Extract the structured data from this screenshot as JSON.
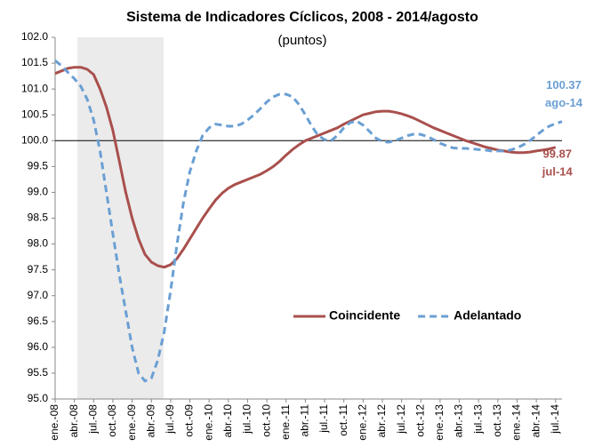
{
  "chart_data": {
    "type": "line",
    "title": "Sistema de Indicadores Cíclicos, 2008 - 2014/agosto",
    "subtitle": "(puntos)",
    "categories": [
      "ene.-08",
      null,
      null,
      "abr.-08",
      null,
      null,
      "jul.-08",
      null,
      null,
      "oct.-08",
      null,
      null,
      "ene.-09",
      null,
      null,
      "abr.-09",
      null,
      null,
      "jul.-09",
      null,
      null,
      "oct.-09",
      null,
      null,
      "ene.-10",
      null,
      null,
      "abr.-10",
      null,
      null,
      "jul.-10",
      null,
      null,
      "oct.-10",
      null,
      null,
      "ene.-11",
      null,
      null,
      "abr.-11",
      null,
      null,
      "jul.-11",
      null,
      null,
      "oct.-11",
      null,
      null,
      "ene.-12",
      null,
      null,
      "abr.-12",
      null,
      null,
      "jul.-12",
      null,
      null,
      "oct.-12",
      null,
      null,
      "ene.-13",
      null,
      null,
      "abr.-13",
      null,
      null,
      "jul.-13",
      null,
      null,
      "oct.-13",
      null,
      null,
      "ene.-14",
      null,
      null,
      "abr.-14",
      null,
      null,
      "jul.-14",
      null
    ],
    "series": [
      {
        "name": "Coincidente",
        "color": "#a9504d",
        "dash": false,
        "end_label": "99.87",
        "end_date": "jul-14",
        "values": [
          101.3,
          101.35,
          101.4,
          101.42,
          101.42,
          101.38,
          101.28,
          101.0,
          100.65,
          100.2,
          99.6,
          99.0,
          98.5,
          98.1,
          97.8,
          97.65,
          97.58,
          97.55,
          97.6,
          97.72,
          97.9,
          98.1,
          98.3,
          98.5,
          98.68,
          98.85,
          98.98,
          99.08,
          99.15,
          99.2,
          99.25,
          99.3,
          99.35,
          99.42,
          99.5,
          99.6,
          99.72,
          99.83,
          99.92,
          100.0,
          100.05,
          100.1,
          100.15,
          100.2,
          100.25,
          100.32,
          100.38,
          100.44,
          100.5,
          100.53,
          100.56,
          100.57,
          100.57,
          100.55,
          100.52,
          100.48,
          100.43,
          100.37,
          100.31,
          100.25,
          100.2,
          100.15,
          100.1,
          100.05,
          100.0,
          99.96,
          99.92,
          99.88,
          99.85,
          99.82,
          99.8,
          99.78,
          99.77,
          99.77,
          99.78,
          99.8,
          99.82,
          99.84,
          99.87,
          null
        ]
      },
      {
        "name": "Adelantado",
        "color": "#6a9fd3",
        "dash": true,
        "end_label": "100.37",
        "end_date": "ago-14",
        "values": [
          101.55,
          101.45,
          101.32,
          101.2,
          101.05,
          100.8,
          100.4,
          99.8,
          99.0,
          98.2,
          97.4,
          96.7,
          96.0,
          95.5,
          95.35,
          95.4,
          95.75,
          96.3,
          97.1,
          98.0,
          98.8,
          99.4,
          99.8,
          100.1,
          100.25,
          100.32,
          100.3,
          100.28,
          100.28,
          100.32,
          100.4,
          100.5,
          100.62,
          100.75,
          100.85,
          100.9,
          100.9,
          100.85,
          100.7,
          100.5,
          100.28,
          100.1,
          100.02,
          100.0,
          100.1,
          100.25,
          100.35,
          100.38,
          100.3,
          100.18,
          100.05,
          99.98,
          99.97,
          100.0,
          100.05,
          100.1,
          100.13,
          100.12,
          100.08,
          100.02,
          99.95,
          99.9,
          99.86,
          99.85,
          99.85,
          99.84,
          99.83,
          99.82,
          99.8,
          99.8,
          99.8,
          99.82,
          99.86,
          99.92,
          100.0,
          100.1,
          100.2,
          100.28,
          100.33,
          100.37
        ]
      }
    ],
    "ylim": [
      95,
      102
    ],
    "yticks": [
      {
        "value": 95,
        "label": "95.0"
      },
      {
        "value": 95.5,
        "label": "95.5"
      },
      {
        "value": 96,
        "label": "96.0"
      },
      {
        "value": 96.5,
        "label": "96.5"
      },
      {
        "value": 97,
        "label": "97.0"
      },
      {
        "value": 97.5,
        "label": "97.5"
      },
      {
        "value": 98,
        "label": "98.0"
      },
      {
        "value": 98.5,
        "label": "98.5"
      },
      {
        "value": 99,
        "label": "99.0"
      },
      {
        "value": 99.5,
        "label": "99.5"
      },
      {
        "value": 100,
        "label": "100.0"
      },
      {
        "value": 100.5,
        "label": "100.5"
      },
      {
        "value": 101,
        "label": "101.0"
      },
      {
        "value": 101.5,
        "label": "101.5"
      },
      {
        "value": 102,
        "label": "102.0"
      }
    ],
    "reference_line": 100,
    "grid": false,
    "legend": "right"
  }
}
